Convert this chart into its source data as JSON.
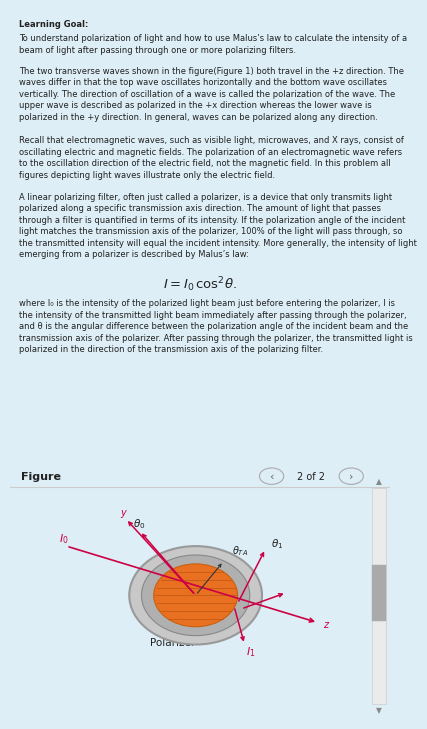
{
  "bg_color": "#ddeef6",
  "white_bg": "#ffffff",
  "text_color": "#222222",
  "title": "Learning Goal:",
  "para1": "To understand polarization of light and how to use Malus’s law to calculate the intensity of a\nbeam of light after passing through one or more polarizing filters.",
  "para2": "The two transverse waves shown in the figure(Figure 1) both travel in the +z direction. The\nwaves differ in that the top wave oscillates horizontally and the bottom wave oscillates\nvertically. The direction of oscillation of a wave is called the polarization of the wave. The\nupper wave is described as polarized in the +x direction whereas the lower wave is\npolarized in the +y direction. In general, waves can be polarized along any direction.",
  "para3": "Recall that electromagnetic waves, such as visible light, microwaves, and X rays, consist of\noscillating electric and magnetic fields. The polarization of an electromagnetic wave refers\nto the oscillation direction of the electric field, not the magnetic field. In this problem all\nfigures depicting light waves illustrate only the electric field.",
  "para4": "A linear polarizing filter, often just called a polarizer, is a device that only transmits light\npolarized along a specific transmission axis direction. The amount of light that passes\nthrough a filter is quantified in terms of its intensity. If the polarization angle of the incident\nlight matches the transmission axis of the polarizer, 100% of the light will pass through, so\nthe transmitted intensity will equal the incident intensity. More generally, the intensity of light\nemerging from a polarizer is described by Malus’s law:",
  "after_eq": "where I₀ is the intensity of the polarized light beam just before entering the polarizer, I is\nthe intensity of the transmitted light beam immediately after passing through the polarizer,\nand θ is the angular difference between the polarization angle of the incident beam and the\ntransmission axis of the polarizer. After passing through the polarizer, the transmitted light is\npolarized in the direction of the transmission axis of the polarizing filter.",
  "figure_label": "Figure",
  "nav_text": "2 of 2",
  "polarizer_label": "Polarizer",
  "arrow_color": "#cc0044",
  "polarizer_face_color": "#e87020",
  "link_color": "#1a6bcc"
}
